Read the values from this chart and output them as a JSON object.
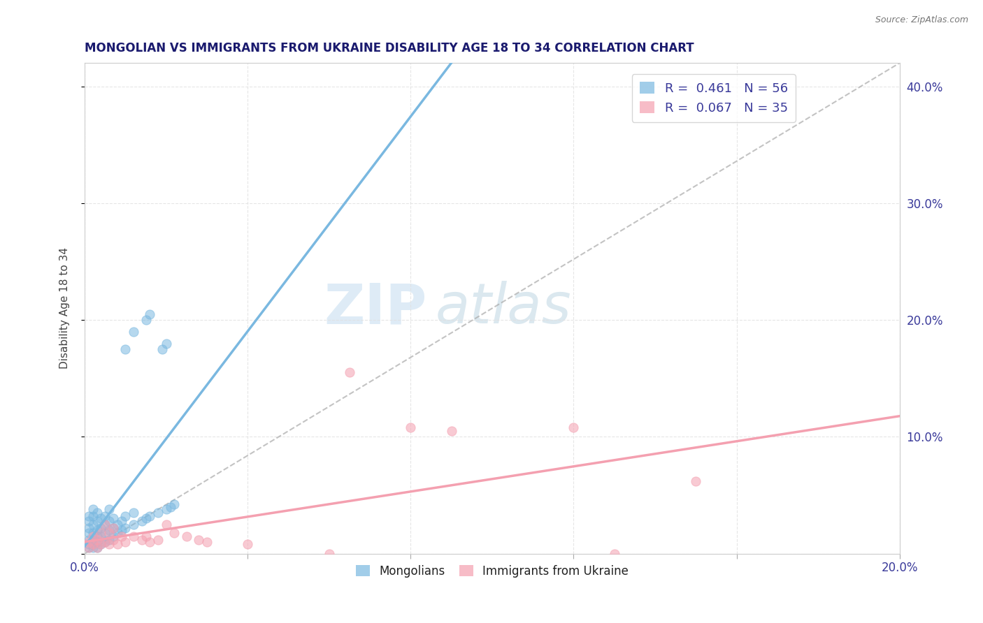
{
  "title": "MONGOLIAN VS IMMIGRANTS FROM UKRAINE DISABILITY AGE 18 TO 34 CORRELATION CHART",
  "source": "Source: ZipAtlas.com",
  "ylabel": "Disability Age 18 to 34",
  "xlim": [
    0.0,
    0.2
  ],
  "ylim": [
    0.0,
    0.42
  ],
  "xticks": [
    0.0,
    0.04,
    0.08,
    0.12,
    0.16,
    0.2
  ],
  "yticks": [
    0.0,
    0.1,
    0.2,
    0.3,
    0.4
  ],
  "mongolian_color": "#7ab8e0",
  "ukraine_color": "#f4a0b0",
  "mongolian_scatter": [
    [
      0.001,
      0.005
    ],
    [
      0.001,
      0.008
    ],
    [
      0.001,
      0.012
    ],
    [
      0.001,
      0.018
    ],
    [
      0.001,
      0.022
    ],
    [
      0.001,
      0.028
    ],
    [
      0.001,
      0.032
    ],
    [
      0.002,
      0.005
    ],
    [
      0.002,
      0.008
    ],
    [
      0.002,
      0.012
    ],
    [
      0.002,
      0.018
    ],
    [
      0.002,
      0.025
    ],
    [
      0.002,
      0.032
    ],
    [
      0.002,
      0.038
    ],
    [
      0.003,
      0.005
    ],
    [
      0.003,
      0.01
    ],
    [
      0.003,
      0.015
    ],
    [
      0.003,
      0.02
    ],
    [
      0.003,
      0.028
    ],
    [
      0.003,
      0.035
    ],
    [
      0.004,
      0.008
    ],
    [
      0.004,
      0.015
    ],
    [
      0.004,
      0.022
    ],
    [
      0.004,
      0.03
    ],
    [
      0.005,
      0.01
    ],
    [
      0.005,
      0.018
    ],
    [
      0.005,
      0.025
    ],
    [
      0.005,
      0.032
    ],
    [
      0.006,
      0.012
    ],
    [
      0.006,
      0.02
    ],
    [
      0.006,
      0.028
    ],
    [
      0.006,
      0.038
    ],
    [
      0.007,
      0.015
    ],
    [
      0.007,
      0.022
    ],
    [
      0.007,
      0.03
    ],
    [
      0.008,
      0.018
    ],
    [
      0.008,
      0.025
    ],
    [
      0.009,
      0.02
    ],
    [
      0.009,
      0.028
    ],
    [
      0.01,
      0.022
    ],
    [
      0.01,
      0.032
    ],
    [
      0.012,
      0.025
    ],
    [
      0.012,
      0.035
    ],
    [
      0.014,
      0.028
    ],
    [
      0.015,
      0.03
    ],
    [
      0.016,
      0.032
    ],
    [
      0.018,
      0.035
    ],
    [
      0.02,
      0.038
    ],
    [
      0.021,
      0.04
    ],
    [
      0.022,
      0.042
    ],
    [
      0.012,
      0.19
    ],
    [
      0.01,
      0.175
    ],
    [
      0.015,
      0.2
    ],
    [
      0.016,
      0.205
    ],
    [
      0.019,
      0.175
    ],
    [
      0.02,
      0.18
    ]
  ],
  "ukraine_scatter": [
    [
      0.001,
      0.005
    ],
    [
      0.001,
      0.01
    ],
    [
      0.002,
      0.008
    ],
    [
      0.002,
      0.015
    ],
    [
      0.003,
      0.005
    ],
    [
      0.003,
      0.012
    ],
    [
      0.004,
      0.008
    ],
    [
      0.004,
      0.018
    ],
    [
      0.005,
      0.01
    ],
    [
      0.005,
      0.025
    ],
    [
      0.006,
      0.008
    ],
    [
      0.006,
      0.018
    ],
    [
      0.007,
      0.012
    ],
    [
      0.007,
      0.022
    ],
    [
      0.008,
      0.008
    ],
    [
      0.009,
      0.015
    ],
    [
      0.01,
      0.01
    ],
    [
      0.012,
      0.015
    ],
    [
      0.014,
      0.012
    ],
    [
      0.015,
      0.015
    ],
    [
      0.016,
      0.01
    ],
    [
      0.018,
      0.012
    ],
    [
      0.02,
      0.025
    ],
    [
      0.022,
      0.018
    ],
    [
      0.025,
      0.015
    ],
    [
      0.028,
      0.012
    ],
    [
      0.03,
      0.01
    ],
    [
      0.04,
      0.008
    ],
    [
      0.065,
      0.155
    ],
    [
      0.08,
      0.108
    ],
    [
      0.09,
      0.105
    ],
    [
      0.12,
      0.108
    ],
    [
      0.15,
      0.062
    ],
    [
      0.06,
      0.0
    ],
    [
      0.13,
      0.0
    ]
  ],
  "mongolian_R": 0.461,
  "mongolian_N": 56,
  "ukraine_R": 0.067,
  "ukraine_N": 35,
  "watermark_zip": "ZIP",
  "watermark_atlas": "atlas",
  "background_color": "#ffffff",
  "grid_color": "#e0e0e0"
}
